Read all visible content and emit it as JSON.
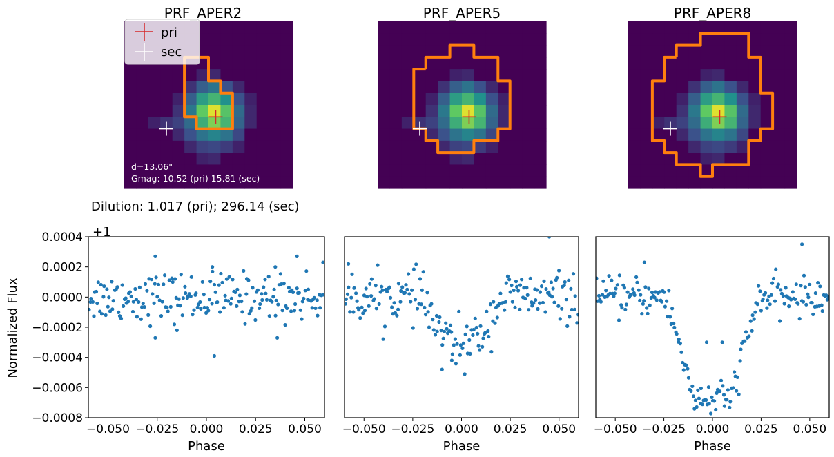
{
  "chart_data": [
    {
      "type": "heatmap",
      "title": "PRF_APER2",
      "image_grid": [
        [
          0,
          0,
          0,
          0,
          0,
          0,
          0,
          0,
          0,
          0,
          0,
          0,
          0,
          0
        ],
        [
          0,
          0,
          0,
          0,
          0,
          0,
          0,
          0,
          0,
          0,
          0,
          0,
          0,
          0
        ],
        [
          0,
          0,
          0,
          0,
          0,
          0,
          0,
          0,
          0,
          0,
          0,
          0,
          0,
          0
        ],
        [
          0,
          0,
          0,
          0,
          0,
          0,
          0,
          0,
          0,
          0,
          0,
          0,
          0,
          0
        ],
        [
          0,
          0,
          0,
          0,
          0,
          0,
          0.1,
          0.12,
          0,
          0,
          0,
          0,
          0,
          0
        ],
        [
          0,
          0,
          0,
          0,
          0,
          0.15,
          0.3,
          0.38,
          0.25,
          0.12,
          0,
          0,
          0,
          0
        ],
        [
          0,
          0,
          0,
          0,
          0.1,
          0.3,
          0.55,
          0.65,
          0.5,
          0.25,
          0.1,
          0,
          0,
          0
        ],
        [
          0,
          0,
          0,
          0,
          0.15,
          0.4,
          0.75,
          0.95,
          0.72,
          0.35,
          0.12,
          0,
          0,
          0
        ],
        [
          0,
          0,
          0.1,
          0.15,
          0.2,
          0.35,
          0.62,
          0.8,
          0.65,
          0.32,
          0.12,
          0,
          0,
          0
        ],
        [
          0,
          0,
          0,
          0,
          0.12,
          0.25,
          0.38,
          0.45,
          0.38,
          0.22,
          0,
          0,
          0,
          0
        ],
        [
          0,
          0,
          0,
          0,
          0,
          0.12,
          0.2,
          0.22,
          0.18,
          0.1,
          0,
          0,
          0,
          0
        ],
        [
          0,
          0,
          0,
          0,
          0,
          0,
          0.1,
          0.12,
          0,
          0,
          0,
          0,
          0,
          0
        ],
        [
          0,
          0,
          0,
          0,
          0,
          0,
          0,
          0,
          0,
          0,
          0,
          0,
          0,
          0
        ],
        [
          0,
          0,
          0,
          0,
          0,
          0,
          0,
          0,
          0,
          0,
          0,
          0,
          0,
          0
        ]
      ],
      "aperture_path": [
        [
          5,
          4
        ],
        [
          5,
          3
        ],
        [
          7,
          3
        ],
        [
          7,
          5
        ],
        [
          8,
          5
        ],
        [
          8,
          6
        ],
        [
          9,
          6
        ],
        [
          9,
          9
        ],
        [
          6,
          9
        ],
        [
          6,
          8
        ],
        [
          5,
          8
        ],
        [
          5,
          4
        ]
      ],
      "markers": {
        "pri": [
          7.6,
          8.0
        ],
        "sec": [
          3.5,
          9.0
        ]
      },
      "legend": [
        {
          "label": "pri",
          "color": "#d62728"
        },
        {
          "label": "sec",
          "color": "#ffffff"
        }
      ],
      "annotations": [
        "d=13.06\"",
        "Gmag: 10.52 (pri) 15.81 (sec)"
      ]
    },
    {
      "type": "heatmap",
      "title": "PRF_APER5",
      "image_grid": "same as PRF_APER2",
      "aperture_path": [
        [
          4,
          4
        ],
        [
          4,
          3
        ],
        [
          6,
          3
        ],
        [
          6,
          2
        ],
        [
          8,
          2
        ],
        [
          8,
          3
        ],
        [
          10,
          3
        ],
        [
          10,
          5
        ],
        [
          11,
          5
        ],
        [
          11,
          9
        ],
        [
          10,
          9
        ],
        [
          10,
          10
        ],
        [
          8,
          10
        ],
        [
          8,
          11
        ],
        [
          5,
          11
        ],
        [
          5,
          10
        ],
        [
          4,
          10
        ],
        [
          4,
          9
        ],
        [
          3,
          9
        ],
        [
          3,
          4
        ],
        [
          4,
          4
        ]
      ],
      "markers": {
        "pri": [
          7.6,
          8.0
        ],
        "sec": [
          3.5,
          9.0
        ]
      }
    },
    {
      "type": "heatmap",
      "title": "PRF_APER8",
      "image_grid": "same as PRF_APER2",
      "aperture_path": [
        [
          4,
          3
        ],
        [
          4,
          2
        ],
        [
          6,
          2
        ],
        [
          6,
          1
        ],
        [
          10,
          1
        ],
        [
          10,
          3
        ],
        [
          11,
          3
        ],
        [
          11,
          6
        ],
        [
          12,
          6
        ],
        [
          12,
          9
        ],
        [
          11,
          9
        ],
        [
          11,
          10
        ],
        [
          10,
          10
        ],
        [
          10,
          12
        ],
        [
          7,
          12
        ],
        [
          7,
          13
        ],
        [
          6,
          13
        ],
        [
          6,
          12
        ],
        [
          4,
          12
        ],
        [
          4,
          11
        ],
        [
          3,
          11
        ],
        [
          3,
          10
        ],
        [
          2,
          10
        ],
        [
          2,
          5
        ],
        [
          3,
          5
        ],
        [
          3,
          3
        ],
        [
          4,
          3
        ]
      ],
      "markers": {
        "pri": [
          7.6,
          8.0
        ],
        "sec": [
          3.5,
          9.0
        ]
      }
    },
    {
      "type": "scatter",
      "title": "",
      "xlabel": "Phase",
      "ylabel": "Normalized Flux",
      "offset_text": "+1",
      "xlim": [
        -0.06,
        0.06
      ],
      "ylim": [
        -0.0008,
        0.0004
      ],
      "xticks": [
        "−0.050",
        "−0.025",
        "0.000",
        "0.025",
        "0.050"
      ],
      "yticks": [
        "−0.0008",
        "−0.0006",
        "−0.0004",
        "−0.0002",
        "0.0000",
        "0.0002",
        "0.0004"
      ],
      "dilution_text": "Dilution: 1.017 (pri); 296.14 (sec)",
      "series": [
        {
          "profile": "flat",
          "noise_sd": 8e-05,
          "n": 200,
          "outliers": [
            [
              -0.026,
              0.00027
            ],
            [
              0.046,
              0.00027
            ],
            [
              0.003,
              0.0002
            ],
            [
              0.035,
              0.0002
            ],
            [
              0.004,
              -0.00039
            ],
            [
              -0.026,
              -0.00027
            ],
            [
              0.036,
              -0.00027
            ],
            [
              -0.015,
              -0.00022
            ]
          ]
        }
      ]
    },
    {
      "type": "scatter",
      "title": "",
      "xlabel": "Phase",
      "xlim": [
        -0.06,
        0.06
      ],
      "ylim": [
        -0.0008,
        0.0004
      ],
      "xticks": [
        "−0.050",
        "−0.025",
        "0.000",
        "0.025",
        "0.050"
      ],
      "series": [
        {
          "profile": "shallow-dip",
          "depth": 0.00032,
          "halfwidth": 0.02,
          "noise_sd": 8e-05,
          "n": 200,
          "outliers": [
            [
              0.045,
              0.0004
            ],
            [
              -0.058,
              0.00022
            ],
            [
              -0.01,
              -0.00048
            ],
            [
              -0.005,
              -0.00042
            ]
          ]
        }
      ]
    },
    {
      "type": "scatter",
      "title": "",
      "xlabel": "Phase",
      "xlim": [
        -0.06,
        0.06
      ],
      "ylim": [
        -0.0008,
        0.0004
      ],
      "xticks": [
        "−0.050",
        "−0.025",
        "0.000",
        "0.025",
        "0.050"
      ],
      "series": [
        {
          "profile": "deep-dip",
          "depth": 0.00068,
          "halfwidth": 0.024,
          "noise_sd": 6e-05,
          "n": 200,
          "outliers": [
            [
              0.046,
              0.00035
            ],
            [
              -0.035,
              0.00023
            ],
            [
              -0.003,
              -0.0003
            ],
            [
              0.005,
              -0.0003
            ]
          ]
        }
      ]
    }
  ]
}
